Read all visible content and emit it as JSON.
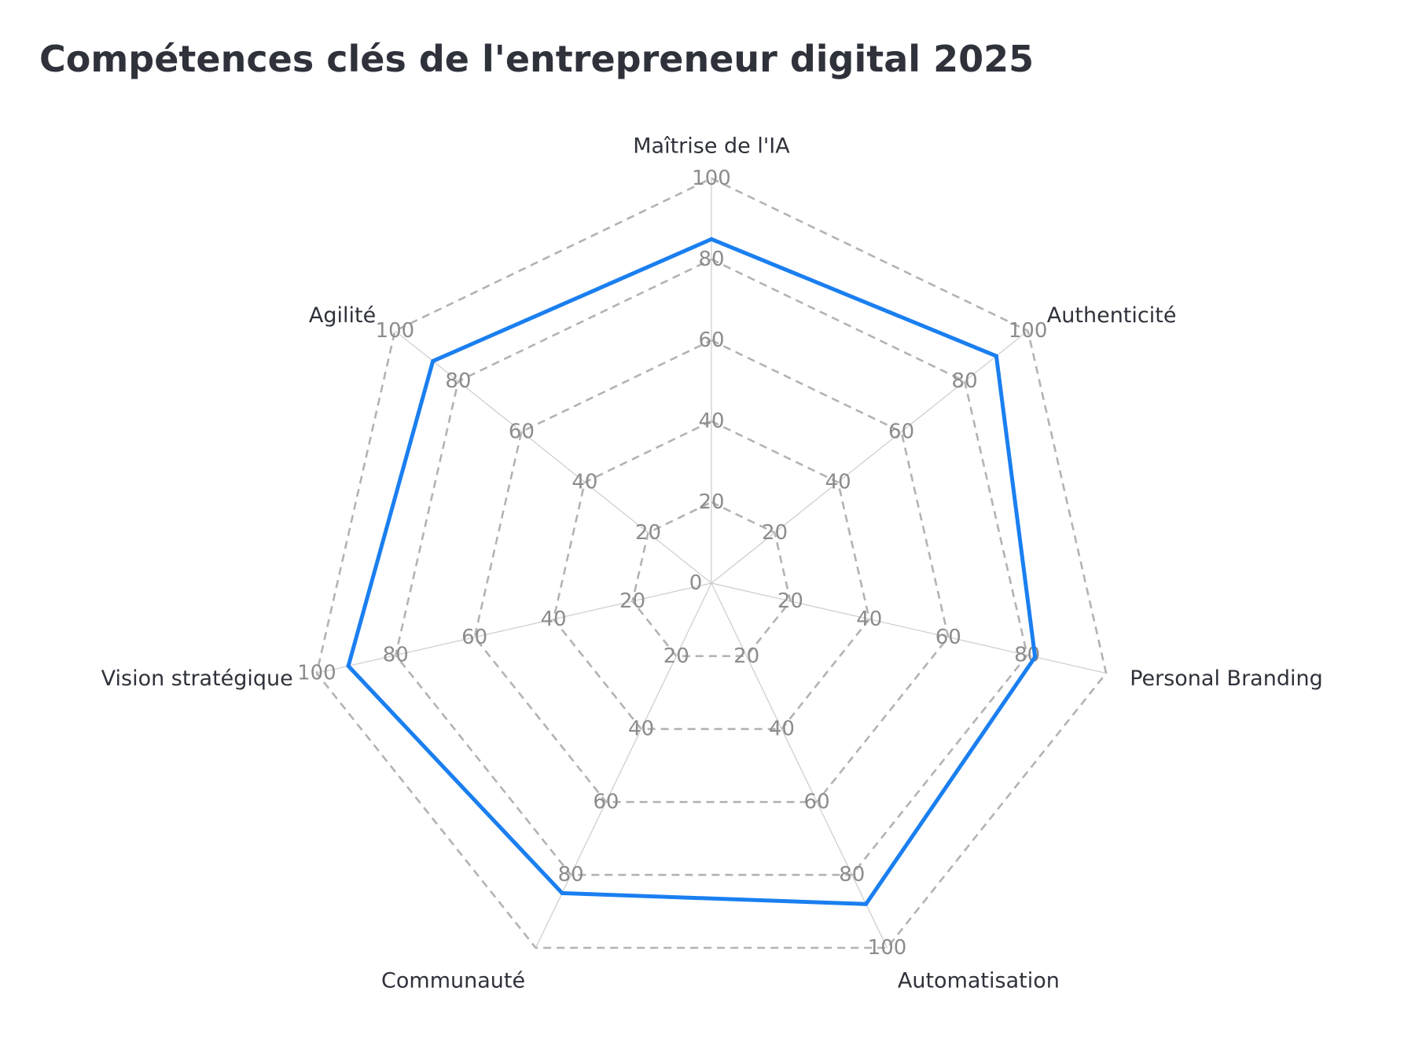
{
  "chart_data": {
    "type": "radar",
    "title": "Compétences clés de l'entrepreneur digital 2025",
    "axes": [
      {
        "label": "Maîtrise de l'IA",
        "value": 85
      },
      {
        "label": "Authenticité",
        "value": 90
      },
      {
        "label": "Personal Branding",
        "value": 82
      },
      {
        "label": "Automatisation",
        "value": 88
      },
      {
        "label": "Communauté",
        "value": 85
      },
      {
        "label": "Vision stratégique",
        "value": 92
      },
      {
        "label": "Agilité",
        "value": 88
      }
    ],
    "rlim": [
      0,
      100
    ],
    "ticks": [
      0,
      20,
      40,
      60,
      80,
      100
    ],
    "axis_tick_labels": [
      [
        "20",
        "40",
        "60",
        "80",
        "100"
      ],
      [
        "20",
        "40",
        "60",
        "80",
        "100"
      ],
      [
        "20",
        "40",
        "60",
        "80"
      ],
      [
        "20",
        "40",
        "60",
        "80",
        "100"
      ],
      [
        "20",
        "40",
        "60",
        "80"
      ],
      [
        "20",
        "40",
        "60",
        "80",
        "100"
      ],
      [
        "20",
        "40",
        "60",
        "80",
        "100"
      ]
    ],
    "center_label": "0",
    "grid": true,
    "legend": false,
    "series_color": "#1a7ff0",
    "grid_color": "#b3b3b3",
    "spoke_color": "#cccccc"
  }
}
